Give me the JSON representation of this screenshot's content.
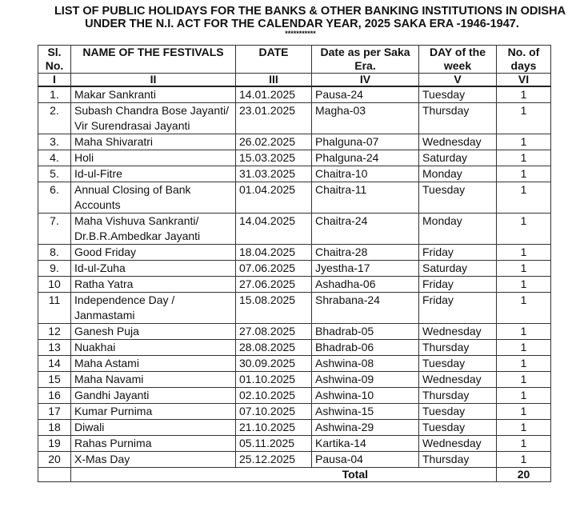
{
  "title_line1": "LIST OF PUBLIC HOLIDAYS FOR THE BANKS & OTHER BANKING INSTITUTIONS IN ODISHA",
  "title_line2": "UNDER THE N.I. ACT FOR THE CALENDAR YEAR, 2025 SAKA ERA -1946-1947.",
  "stars": "***********",
  "headers": [
    "Sl. No.",
    "NAME OF THE FESTIVALS",
    "DATE",
    "Date as per Saka Era.",
    "DAY of the week",
    "No. of days"
  ],
  "roman": [
    "I",
    "II",
    "III",
    "IV",
    "V",
    "VI"
  ],
  "rows": [
    {
      "sl": "1.",
      "name": "Makar Sankranti",
      "date": "14.01.2025",
      "saka": "Pausa-24",
      "day": "Tuesday",
      "days": "1"
    },
    {
      "sl": "2.",
      "name": "Subash Chandra Bose Jayanti/ Vir Surendrasai Jayanti",
      "date": "23.01.2025",
      "saka": "Magha-03",
      "day": "Thursday",
      "days": "1"
    },
    {
      "sl": "3.",
      "name": "Maha Shivaratri",
      "date": "26.02.2025",
      "saka": "Phalguna-07",
      "day": "Wednesday",
      "days": "1"
    },
    {
      "sl": "4.",
      "name": "Holi",
      "date": "15.03.2025",
      "saka": "Phalguna-24",
      "day": "Saturday",
      "days": "1"
    },
    {
      "sl": "5.",
      "name": "Id-ul-Fitre",
      "date": "31.03.2025",
      "saka": "Chaitra-10",
      "day": "Monday",
      "days": "1"
    },
    {
      "sl": "6.",
      "name": "Annual Closing of Bank Accounts",
      "date": "01.04.2025",
      "saka": "Chaitra-11",
      "day": "Tuesday",
      "days": "1"
    },
    {
      "sl": "7.",
      "name": "Maha Vishuva Sankranti/ Dr.B.R.Ambedkar Jayanti",
      "date": "14.04.2025",
      "saka": "Chaitra-24",
      "day": "Monday",
      "days": "1"
    },
    {
      "sl": "8.",
      "name": "Good Friday",
      "date": "18.04.2025",
      "saka": "Chaitra-28",
      "day": "Friday",
      "days": "1"
    },
    {
      "sl": "9.",
      "name": "Id-ul-Zuha",
      "date": "07.06.2025",
      "saka": "Jyestha-17",
      "day": "Saturday",
      "days": "1"
    },
    {
      "sl": "10",
      "name": "Ratha Yatra",
      "date": "27.06.2025",
      "saka": "Ashadha-06",
      "day": "Friday",
      "days": "1"
    },
    {
      "sl": "11",
      "name": "Independence Day / Janmastami",
      "date": "15.08.2025",
      "saka": "Shrabana-24",
      "day": "Friday",
      "days": "1"
    },
    {
      "sl": "12",
      "name": "Ganesh Puja",
      "date": "27.08.2025",
      "saka": "Bhadrab-05",
      "day": "Wednesday",
      "days": "1"
    },
    {
      "sl": "13",
      "name": "Nuakhai",
      "date": "28.08.2025",
      "saka": "Bhadrab-06",
      "day": "Thursday",
      "days": "1"
    },
    {
      "sl": "14",
      "name": "Maha Astami",
      "date": "30.09.2025",
      "saka": "Ashwina-08",
      "day": "Tuesday",
      "days": "1"
    },
    {
      "sl": "15",
      "name": "Maha Navami",
      "date": "01.10.2025",
      "saka": "Ashwina-09",
      "day": "Wednesday",
      "days": "1"
    },
    {
      "sl": "16",
      "name": "Gandhi Jayanti",
      "date": "02.10.2025",
      "saka": "Ashwina-10",
      "day": "Thursday",
      "days": "1"
    },
    {
      "sl": "17",
      "name": "Kumar Purnima",
      "date": "07.10.2025",
      "saka": "Ashwina-15",
      "day": "Tuesday",
      "days": "1"
    },
    {
      "sl": "18",
      "name": "Diwali",
      "date": "21.10.2025",
      "saka": "Ashwina-29",
      "day": "Tuesday",
      "days": "1"
    },
    {
      "sl": "19",
      "name": "Rahas Purnima",
      "date": "05.11.2025",
      "saka": "Kartika-14",
      "day": "Wednesday",
      "days": "1"
    },
    {
      "sl": "20",
      "name": "X-Mas Day",
      "date": "25.12.2025",
      "saka": "Pausa-04",
      "day": "Thursday",
      "days": "1"
    }
  ],
  "total_label": "Total",
  "total_value": "20"
}
